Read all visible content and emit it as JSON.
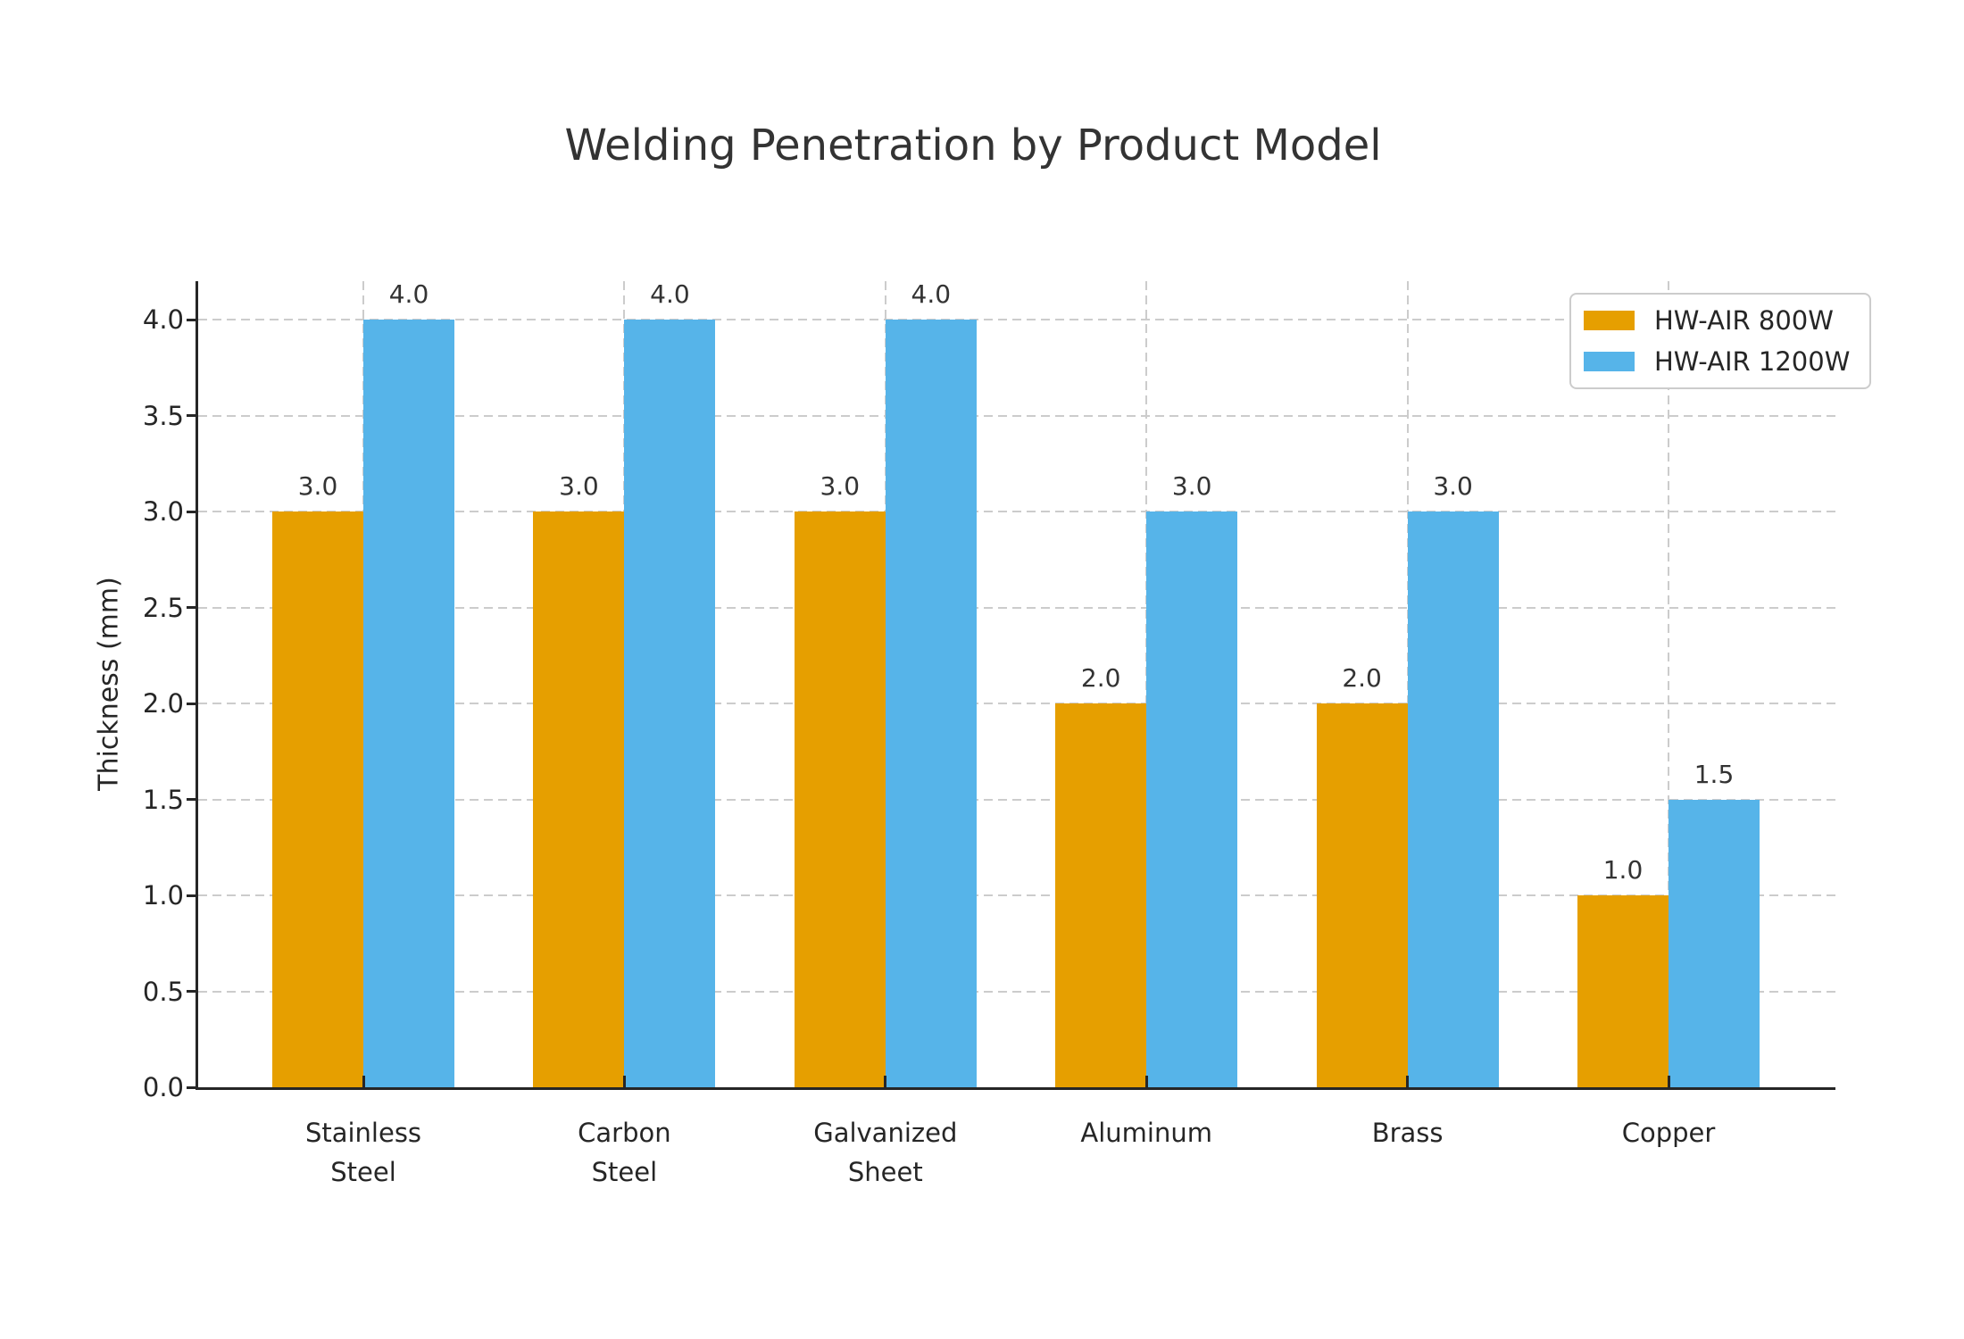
{
  "chart_data": {
    "type": "bar",
    "title": "Welding Penetration by Product Model",
    "ylabel": "Thickness (mm)",
    "xlabel": "",
    "categories": [
      "Stainless\nSteel",
      "Carbon\nSteel",
      "Galvanized\nSheet",
      "Aluminum",
      "Brass",
      "Copper"
    ],
    "series": [
      {
        "name": "HW-AIR 800W",
        "color": "#E69F00",
        "values": [
          3.0,
          3.0,
          3.0,
          2.0,
          2.0,
          1.0
        ]
      },
      {
        "name": "HW-AIR 1200W",
        "color": "#56B4E9",
        "values": [
          4.0,
          4.0,
          4.0,
          3.0,
          3.0,
          1.5
        ]
      }
    ],
    "ylim": [
      0,
      4.2
    ],
    "yticks": [
      0.0,
      0.5,
      1.0,
      1.5,
      2.0,
      2.5,
      3.0,
      3.5,
      4.0
    ],
    "grid": true,
    "grid_style": "dashed",
    "legend_position": "upper right",
    "value_label_decimals": 1,
    "colors": {
      "grid": "#cccccc",
      "axis": "#262626",
      "tick_text": "#262626",
      "title_text": "#333333",
      "value_text": "#333333",
      "background": "#ffffff"
    }
  }
}
